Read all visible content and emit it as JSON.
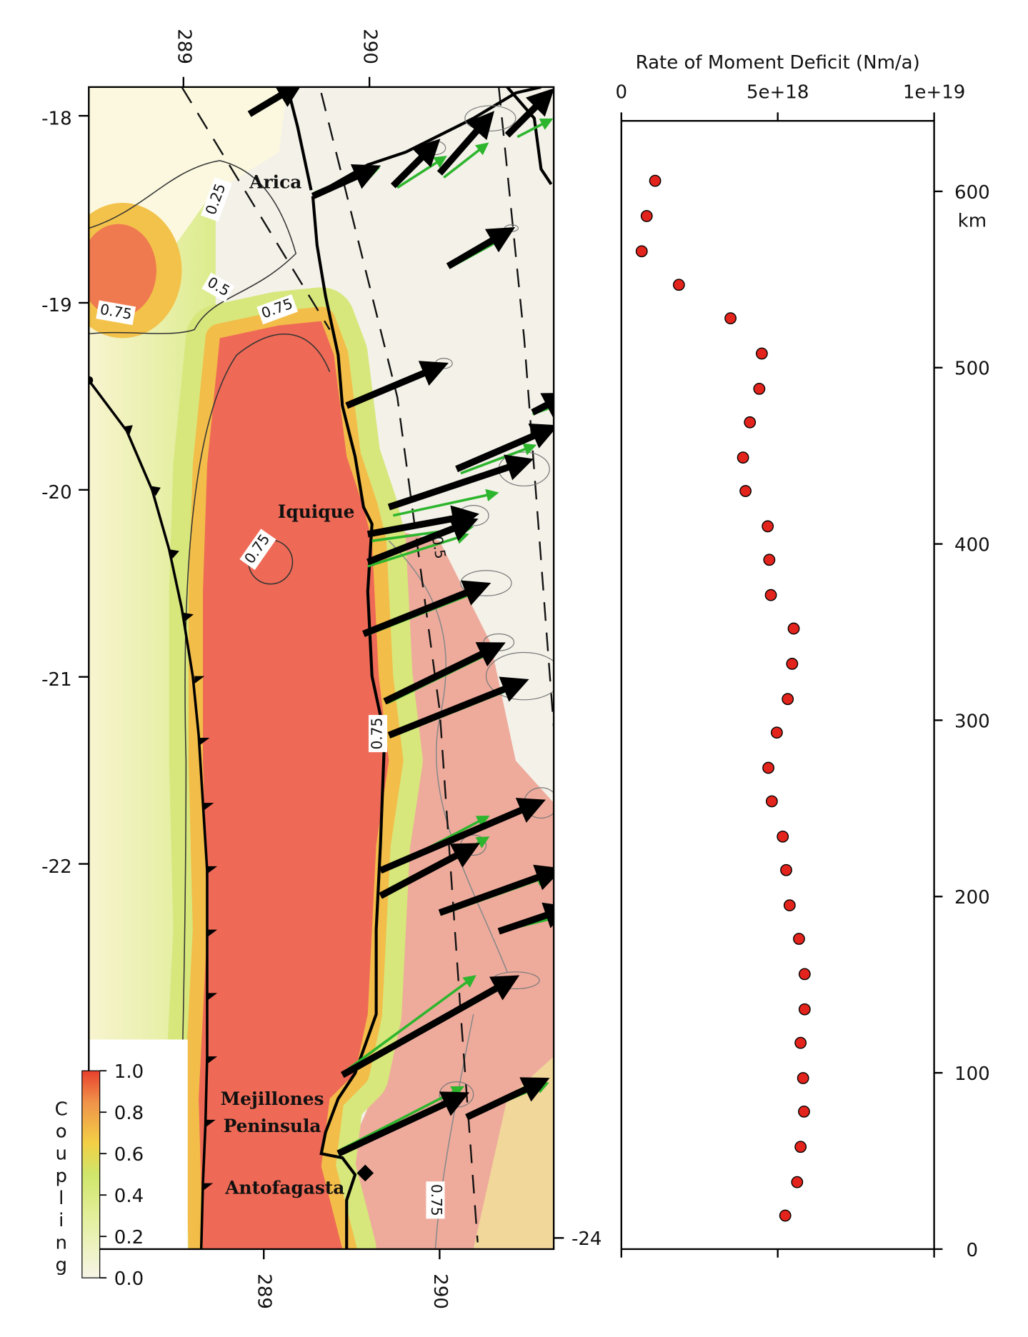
{
  "map": {
    "lat_ticks_left": [
      -18,
      -19,
      -20,
      -21,
      -22
    ],
    "lat_ticks_right": [
      -24
    ],
    "lon_ticks_top": [
      289,
      290
    ],
    "lon_ticks_bottom": [
      289,
      290
    ],
    "places": [
      "Arica",
      "Iquique",
      "Mejillones",
      "Peninsula",
      "Antofagasta"
    ],
    "contour_labels": [
      "0.25",
      "0.5",
      "0.75",
      "0.75",
      "0.75",
      "0.5",
      "0.75",
      "0.75"
    ],
    "colorbar": {
      "title": "Coupling",
      "lim": [
        0,
        1
      ],
      "ticks": [
        {
          "value": 0,
          "label": "0.0"
        },
        {
          "value": 0.2,
          "label": "0.2"
        },
        {
          "value": 0.4,
          "label": "0.4"
        },
        {
          "value": 0.6,
          "label": "0.6"
        },
        {
          "value": 0.8,
          "label": "0.8"
        },
        {
          "value": 1,
          "label": "1.0"
        }
      ]
    }
  },
  "chart_data": {
    "type": "dot",
    "title": "Rate of Moment Deficit (Nm/a)",
    "y_label": "km",
    "color": "#e3241c",
    "y": [
      606,
      586,
      566,
      547,
      528,
      508,
      488,
      469,
      449,
      430,
      410,
      391,
      371,
      352,
      332,
      312,
      293,
      273,
      254,
      234,
      215,
      195,
      176,
      156,
      136,
      117,
      97,
      78,
      58,
      38,
      19
    ],
    "values": [
      1.08e+18,
      8.1e+17,
      6.5e+17,
      1.84e+18,
      3.49e+18,
      4.49e+18,
      4.41e+18,
      4.11e+18,
      3.89e+18,
      3.97e+18,
      4.68e+18,
      4.73e+18,
      4.78e+18,
      5.51e+18,
      5.46e+18,
      5.32e+18,
      4.97e+18,
      4.7e+18,
      4.81e+18,
      5.16e+18,
      5.27e+18,
      5.38e+18,
      5.68e+18,
      5.86e+18,
      5.86e+18,
      5.73e+18,
      5.81e+18,
      5.84e+18,
      5.73e+18,
      5.62e+18,
      5.24e+18
    ],
    "xlim": [
      0,
      1e+19
    ],
    "xticks": [
      0,
      {
        "value": 5e+18,
        "label": "5e+18"
      },
      {
        "value": 1e+19,
        "label": "1e+19"
      }
    ],
    "ylim": [
      0,
      640
    ],
    "yticks": [
      0,
      100,
      200,
      300,
      400,
      500,
      600
    ]
  }
}
